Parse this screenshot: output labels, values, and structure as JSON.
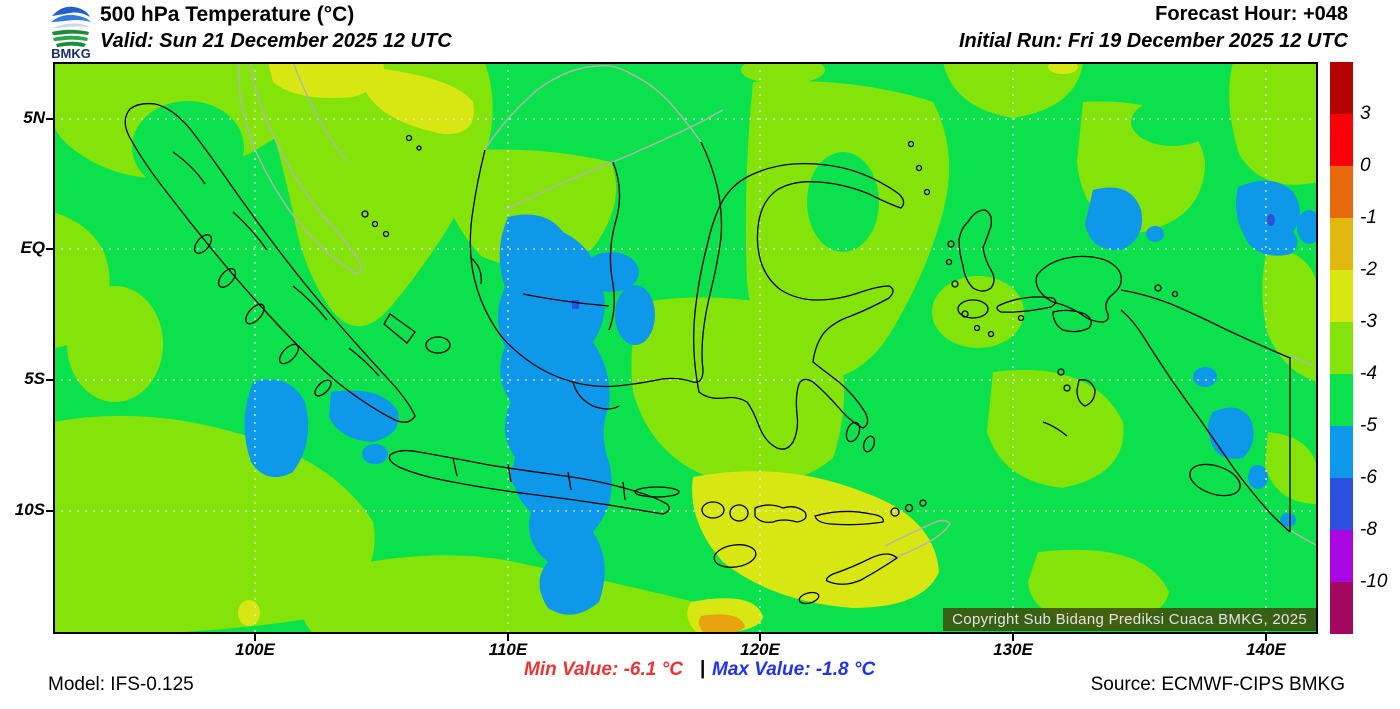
{
  "header": {
    "logo_text": "BMKG",
    "title": "500 hPa Temperature (°C)",
    "valid": "Valid: Sun 21 December 2025 12 UTC",
    "forecast_hour": "Forecast Hour: +048",
    "initial_run": "Initial Run: Fri 19 December 2025 12 UTC"
  },
  "map": {
    "copyright": "Copyright Sub Bidang Prediksi Cuaca BMKG, 2025",
    "lat_labels": [
      "5N",
      "EQ",
      "5S",
      "10S"
    ],
    "lon_labels": [
      "100E",
      "110E",
      "120E",
      "130E",
      "140E"
    ]
  },
  "colorbar": {
    "tick_labels": [
      "3",
      "0",
      "-1",
      "-2",
      "-3",
      "-4",
      "-5",
      "-6",
      "-8",
      "-10"
    ],
    "colors": [
      "#b50400",
      "#fa0007",
      "#e8680c",
      "#e0b810",
      "#d8e712",
      "#84e409",
      "#0be14d",
      "#0d98ea",
      "#2c51dc",
      "#a906e4",
      "#a3085f"
    ]
  },
  "footer": {
    "model": "Model: IFS-0.125",
    "min_label": "Min Value: -6.1 °C",
    "separator": "|",
    "max_label": "Max Value: -1.8 °C",
    "source": "Source: ECMWF-CIPS BMKG"
  },
  "chart_data": {
    "type": "heatmap",
    "title": "500 hPa Temperature (°C)",
    "units": "°C",
    "levels": [
      -10,
      -8,
      -6,
      -5,
      -4,
      -3,
      -2,
      -1,
      0,
      3
    ],
    "level_colors_low_to_high": [
      "#a3085f",
      "#a906e4",
      "#2c51dc",
      "#0d98ea",
      "#0be14d",
      "#84e409",
      "#d8e712",
      "#e0b810",
      "#e8680c",
      "#fa0007",
      "#b50400"
    ],
    "min_value": -6.1,
    "max_value": -1.8,
    "x_ticks": [
      "100E",
      "110E",
      "120E",
      "130E",
      "140E"
    ],
    "y_ticks": [
      "5N",
      "EQ",
      "5S",
      "10S"
    ],
    "legend_position": "right",
    "grid": "dotted 5-degree graticule",
    "summary": "Most of the Indonesian domain lies in the -5 to -4 °C band (green). Pockets of -6 to -5 °C (light blue) cover central Kalimantan, the Java Sea, waters southwest of Sumatra, areas northeast of Sulawesi and southern Papua. -4 to -3 °C (yellow-green) patches over the Malay Peninsula, Sulawesi and the far west/southwest. -3 to -2 °C (yellow) over the Lesser Sunda Islands and the northern Malay Peninsula, with a small -2 to -1 °C (amber) spot south of Java."
  }
}
